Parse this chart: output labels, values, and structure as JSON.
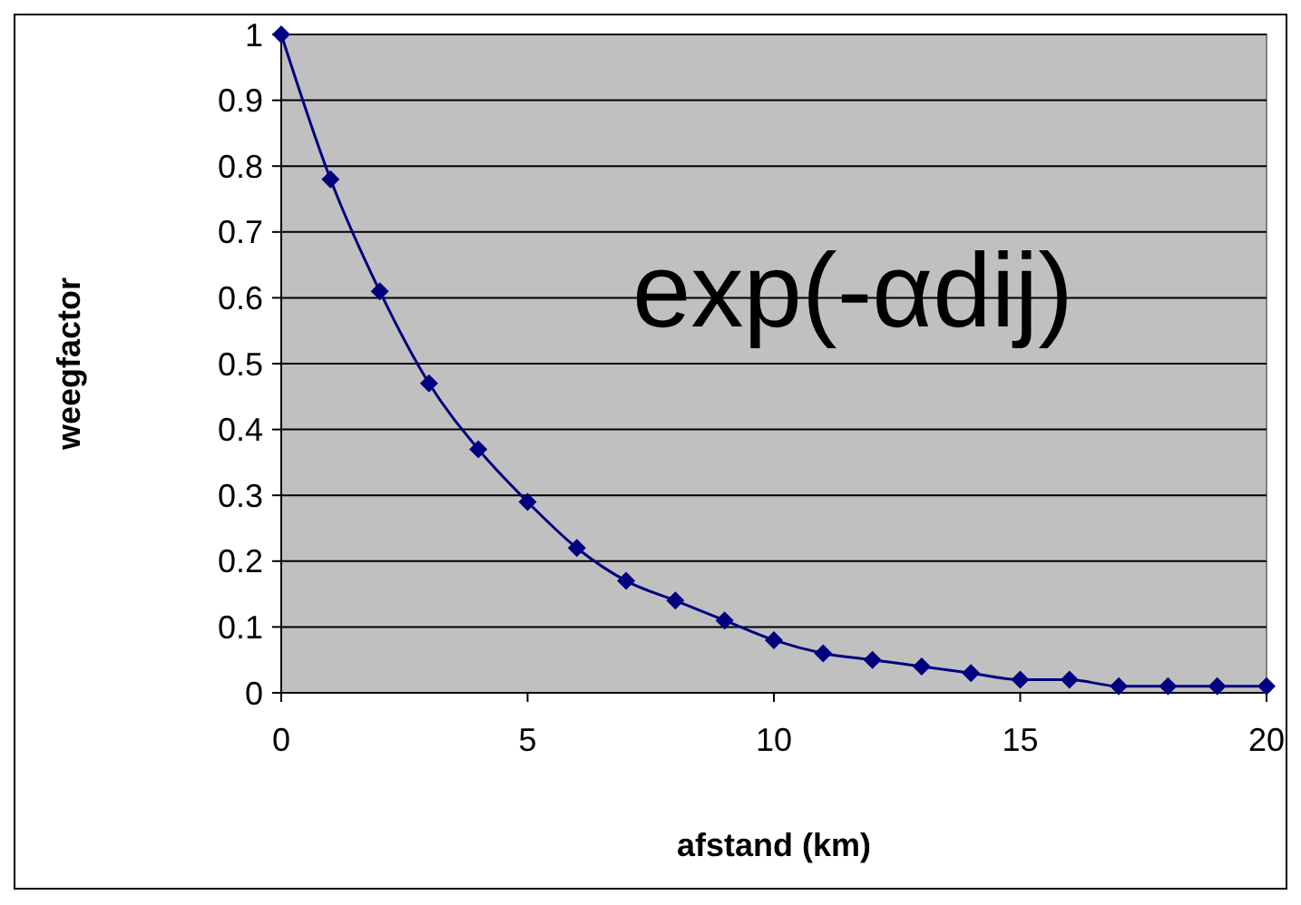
{
  "chart_data": {
    "type": "line",
    "xlabel": "afstand (km)",
    "ylabel": "weegfactor",
    "annotations": [
      "exp(-αdij)"
    ],
    "x": [
      0,
      1,
      2,
      3,
      4,
      5,
      6,
      7,
      8,
      9,
      10,
      11,
      12,
      13,
      14,
      15,
      16,
      17,
      18,
      19,
      20
    ],
    "series": [
      {
        "color": "#000080",
        "values": [
          1,
          0.78,
          0.61,
          0.47,
          0.37,
          0.29,
          0.22,
          0.17,
          0.14,
          0.11,
          0.08,
          0.06,
          0.05,
          0.04,
          0.03,
          0.02,
          0.02,
          0.01,
          0.01,
          0.01,
          0.01
        ]
      }
    ],
    "xlim": [
      0,
      20
    ],
    "xticks": [
      0,
      5,
      10,
      15,
      20
    ],
    "ylim": [
      0,
      1
    ],
    "yticks": [
      0,
      0.1,
      0.2,
      0.3,
      0.4,
      0.5,
      0.6,
      0.7,
      0.8,
      0.9,
      1
    ],
    "grid": "y",
    "marker": "diamond",
    "line_style": "solid"
  }
}
